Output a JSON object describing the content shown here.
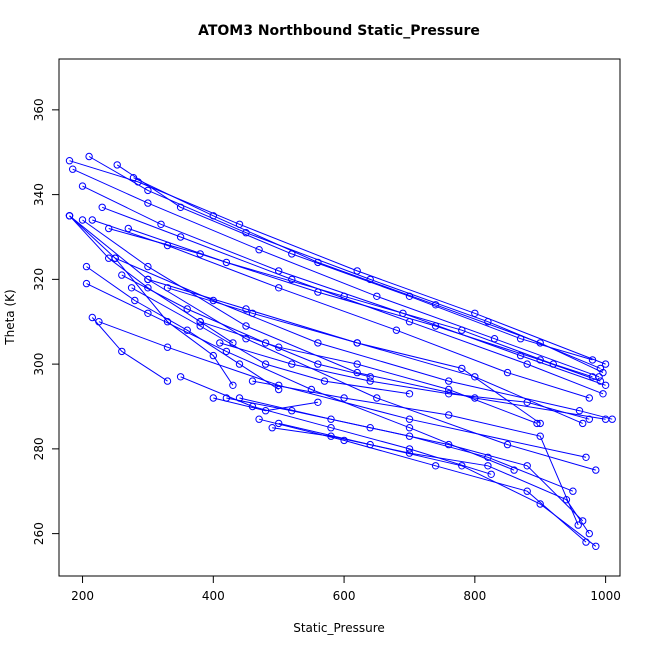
{
  "chart_data": {
    "type": "line",
    "title": "ATOM3 Northbound Static_Pressure",
    "xlabel": "Static_Pressure",
    "ylabel": "Theta (K)",
    "xlim": [
      164,
      1022
    ],
    "ylim": [
      250,
      372
    ],
    "xticks": [
      200,
      400,
      600,
      800,
      1000
    ],
    "yticks": [
      260,
      280,
      300,
      320,
      340,
      360
    ],
    "grid": false,
    "legend": "none",
    "color": "#0000ff",
    "series": [
      {
        "x": [
          180,
          285,
          440,
          620,
          800,
          1000
        ],
        "y": [
          348,
          343,
          333,
          322,
          312,
          300
        ]
      },
      {
        "x": [
          210,
          300,
          450,
          640,
          820,
          992
        ],
        "y": [
          349,
          341,
          331,
          320,
          310,
          299
        ]
      },
      {
        "x": [
          253,
          350,
          520,
          700,
          870,
          980
        ],
        "y": [
          347,
          337,
          326,
          316,
          306,
          301
        ]
      },
      {
        "x": [
          278,
          400,
          560,
          740,
          900,
          996
        ],
        "y": [
          344,
          335,
          324,
          314,
          305,
          298
        ]
      },
      {
        "x": [
          185,
          300,
          470,
          650,
          830,
          990
        ],
        "y": [
          346,
          338,
          327,
          316,
          306,
          297
        ]
      },
      {
        "x": [
          200,
          320,
          500,
          690,
          870,
          1000
        ],
        "y": [
          342,
          333,
          322,
          312,
          302,
          295
        ]
      },
      {
        "x": [
          230,
          350,
          520,
          700,
          880,
          996
        ],
        "y": [
          337,
          330,
          320,
          310,
          300,
          293
        ]
      },
      {
        "x": [
          240,
          380,
          560,
          740,
          900,
          992
        ],
        "y": [
          332,
          326,
          317,
          309,
          301,
          296
        ]
      },
      {
        "x": [
          270,
          420,
          600,
          780,
          920,
          980
        ],
        "y": [
          332,
          324,
          316,
          308,
          300,
          297
        ]
      },
      {
        "x": [
          215,
          330,
          500,
          680,
          850,
          975
        ],
        "y": [
          334,
          328,
          318,
          308,
          298,
          292
        ]
      },
      {
        "x": [
          180,
          250,
          330,
          400,
          430
        ],
        "y": [
          335,
          325,
          310,
          302,
          295
        ]
      },
      {
        "x": [
          200,
          300,
          450,
          620,
          800,
          1000
        ],
        "y": [
          334,
          323,
          309,
          298,
          292,
          287
        ]
      },
      {
        "x": [
          250,
          400,
          560,
          760,
          960,
          1010
        ],
        "y": [
          325,
          315,
          305,
          296,
          289,
          287
        ]
      },
      {
        "x": [
          300,
          450,
          620,
          800,
          965
        ],
        "y": [
          320,
          313,
          305,
          297,
          286
        ]
      },
      {
        "x": [
          330,
          460,
          620,
          780,
          900
        ],
        "y": [
          318,
          312,
          305,
          299,
          286
        ]
      },
      {
        "x": [
          260,
          360,
          480,
          560,
          640
        ],
        "y": [
          321,
          313,
          305,
          300,
          297
        ]
      },
      {
        "x": [
          275,
          380,
          480,
          570,
          700
        ],
        "y": [
          318,
          309,
          300,
          296,
          293
        ]
      },
      {
        "x": [
          180,
          240,
          300,
          380,
          430
        ],
        "y": [
          335,
          325,
          318,
          310,
          305
        ]
      },
      {
        "x": [
          206,
          280,
          360,
          440,
          500
        ],
        "y": [
          323,
          315,
          308,
          300,
          294
        ]
      },
      {
        "x": [
          206,
          300,
          420,
          550,
          700,
          860
        ],
        "y": [
          319,
          312,
          303,
          294,
          285,
          275
        ]
      },
      {
        "x": [
          225,
          330,
          500,
          700,
          970
        ],
        "y": [
          310,
          304,
          295,
          287,
          278
        ]
      },
      {
        "x": [
          215,
          260,
          330
        ],
        "y": [
          311,
          303,
          296
        ]
      },
      {
        "x": [
          180,
          300,
          450,
          650,
          850,
          985
        ],
        "y": [
          335,
          320,
          306,
          292,
          281,
          275
        ]
      },
      {
        "x": [
          410,
          520,
          640,
          760,
          880,
          975
        ],
        "y": [
          305,
          300,
          296,
          293,
          291,
          287
        ]
      },
      {
        "x": [
          420,
          520,
          640,
          760,
          880,
          965
        ],
        "y": [
          292,
          289,
          285,
          281,
          276,
          263
        ]
      },
      {
        "x": [
          400,
          480,
          560
        ],
        "y": [
          292,
          289,
          291
        ]
      },
      {
        "x": [
          490,
          580,
          700,
          820,
          940,
          975
        ],
        "y": [
          285,
          283,
          279,
          276,
          268,
          260
        ]
      },
      {
        "x": [
          470,
          600,
          740,
          880,
          970
        ],
        "y": [
          287,
          282,
          276,
          270,
          258
        ]
      },
      {
        "x": [
          500,
          640,
          780,
          900,
          985
        ],
        "y": [
          286,
          281,
          276,
          267,
          257
        ]
      },
      {
        "x": [
          440,
          580,
          700,
          820,
          950
        ],
        "y": [
          292,
          287,
          283,
          278,
          270
        ]
      },
      {
        "x": [
          460,
          600,
          760,
          900,
          958
        ],
        "y": [
          296,
          292,
          288,
          283,
          262
        ]
      },
      {
        "x": [
          350,
          460,
          580,
          700,
          825
        ],
        "y": [
          297,
          290,
          285,
          280,
          274
        ]
      },
      {
        "x": [
          380,
          500,
          620,
          760,
          895
        ],
        "y": [
          310,
          304,
          300,
          294,
          286
        ]
      }
    ]
  }
}
